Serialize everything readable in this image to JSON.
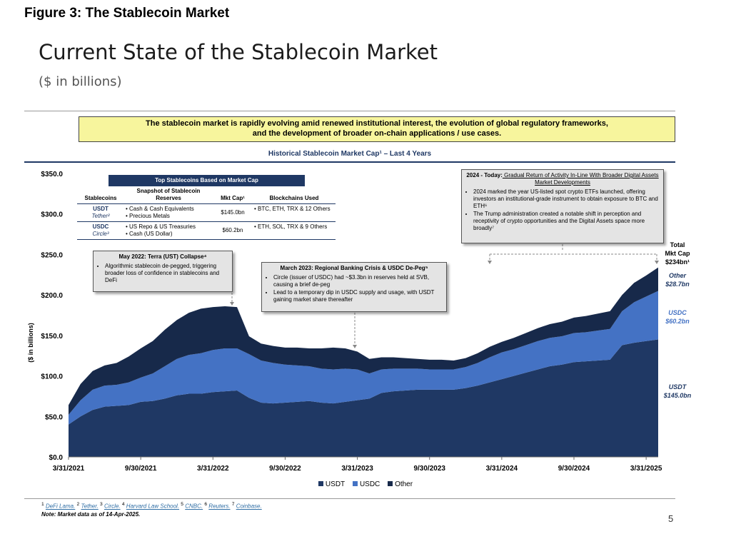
{
  "figure_title": "Figure 3: The Stablecoin Market",
  "main_title": "Current State of the Stablecoin Market",
  "units_note": "($ in billions)",
  "banner": {
    "line1": "The stablecoin market is rapidly evolving amid renewed institutional interest, the evolution of global regulatory frameworks,",
    "line2": "and the development of broader on-chain applications / use cases."
  },
  "chart_data": {
    "type": "area",
    "title": "Historical Stablecoin Market Cap¹ – Last 4 Years",
    "ylabel": "($ in billions)",
    "ylim": [
      0,
      350
    ],
    "y_ticks": [
      "$0.0",
      "$50.0",
      "$100.0",
      "$150.0",
      "$200.0",
      "$250.0",
      "$300.0",
      "$350.0"
    ],
    "x_ticks": [
      "3/31/2021",
      "9/30/2021",
      "3/31/2022",
      "9/30/2022",
      "3/31/2023",
      "9/30/2023",
      "3/31/2024",
      "9/30/2024",
      "3/31/2025"
    ],
    "stacked": true,
    "legend_position": "bottom",
    "x": [
      0,
      1,
      2,
      3,
      4,
      5,
      6,
      7,
      8,
      9,
      10,
      11,
      12,
      13,
      14,
      15,
      16,
      17,
      18,
      19,
      20,
      21,
      22,
      23,
      24,
      25,
      26,
      27,
      28,
      29,
      30,
      31,
      32,
      33,
      34,
      35,
      36,
      37,
      38,
      39,
      40,
      41,
      42,
      43,
      44,
      45,
      46,
      47,
      48,
      49
    ],
    "x_unit": "months after 3/31/2021",
    "series": [
      {
        "name": "USDT",
        "color": "#1f3864",
        "values": [
          40,
          50,
          58,
          62,
          63,
          64,
          68,
          69,
          72,
          76,
          78,
          78,
          80,
          81,
          82,
          73,
          67,
          66,
          67,
          68,
          69,
          67,
          66,
          68,
          70,
          72,
          79,
          81,
          82,
          83,
          83,
          83,
          83,
          85,
          88,
          92,
          96,
          100,
          104,
          108,
          112,
          114,
          117,
          118,
          119,
          120,
          138,
          141,
          143,
          145
        ]
      },
      {
        "name": "USDC",
        "color": "#4472c4",
        "values": [
          12,
          20,
          25,
          26,
          26,
          28,
          30,
          34,
          40,
          45,
          48,
          50,
          52,
          53,
          52,
          54,
          52,
          50,
          47,
          45,
          43,
          42,
          42,
          41,
          38,
          31,
          29,
          28,
          27,
          26,
          25,
          25,
          25,
          26,
          28,
          31,
          33,
          33,
          34,
          35,
          35,
          35,
          36,
          36,
          37,
          38,
          42,
          50,
          55,
          60
        ]
      },
      {
        "name": "Other",
        "color": "#17294a",
        "values": [
          12,
          20,
          23,
          25,
          27,
          32,
          36,
          40,
          45,
          48,
          52,
          55,
          53,
          52,
          51,
          22,
          21,
          21,
          21,
          22,
          22,
          25,
          27,
          25,
          22,
          18,
          15,
          14,
          13,
          12,
          12,
          12,
          11,
          11,
          12,
          13,
          13,
          14,
          15,
          16,
          17,
          18,
          19,
          20,
          21,
          22,
          20,
          24,
          26,
          29
        ]
      }
    ],
    "right_labels": [
      {
        "name": "Total",
        "label": "Total\nMkt Cap\n$234bn¹"
      },
      {
        "name": "Other",
        "label": "Other\n$28.7bn"
      },
      {
        "name": "USDC",
        "label": "USDC\n$60.2bn"
      },
      {
        "name": "USDT",
        "label": "USDT\n$145.0bn"
      }
    ]
  },
  "callouts": {
    "terra": {
      "title": "May 2022: Terra (UST) Collapse⁴",
      "bullets": [
        "Algorithmic stablecoin de-pegged, triggering broader loss of confidence in stablecoins and DeFi"
      ]
    },
    "usdc_depeg": {
      "title": "March 2023: Regional Banking Crisis & USDC De-Peg⁵",
      "bullets": [
        "Circle (issuer of USDC) had ~$3.3bn in reserves held at SVB, causing a brief de-peg",
        "Lead to a temporary dip in USDC supply and usage, with USDT gaining market share thereafter"
      ]
    },
    "today": {
      "title_bold": "2024 - Today:",
      "title_rest": " Gradual Return of Activity In-Line With Broader Digital Assets Market Developments",
      "bullets": [
        "2024 marked the year US-listed spot crypto ETFs launched, offering investors an institutional-grade instrument to obtain exposure to BTC and ETH⁶",
        "The Trump administration created a notable shift in perception and receptivity of crypto opportunities and the Digital Assets space more broadly⁷"
      ]
    }
  },
  "top_stablecoins": {
    "title": "Top Stablecoins Based on Market Cap",
    "headers": [
      "Stablecoins",
      "Snapshot of Stablecoin Reserves",
      "Mkt Cap¹",
      "Blockchains Used"
    ],
    "rows": [
      {
        "coin": "USDT",
        "issuer": "Tether²",
        "reserves": "• Cash & Cash Equivalents\n• Precious Metals",
        "mkt_cap": "$145.0bn",
        "chains": "• BTC, ETH, TRX & 12 Others"
      },
      {
        "coin": "USDC",
        "issuer": "Circle³",
        "reserves": "• US Repo & US Treasuries\n• Cash (US Dollar)",
        "mkt_cap": "$60.2bn",
        "chains": "• ETH, SOL, TRX & 9 Others"
      }
    ]
  },
  "footer": {
    "sources": [
      "DeFi Lama.",
      "Tether.",
      "Circle.",
      "Harvard Law School.",
      "CNBC.",
      "Reuters.",
      "Coinbase."
    ],
    "note": "Note: Market data as of 14-Apr-2025.",
    "page": "5"
  }
}
